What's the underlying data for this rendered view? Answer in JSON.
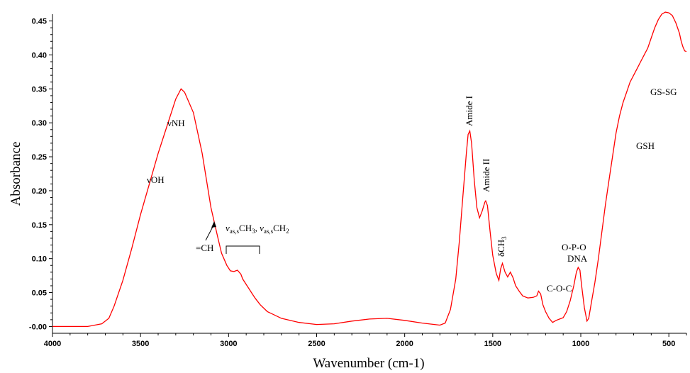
{
  "chart_data": {
    "type": "line",
    "title": "",
    "xlabel": "Wavenumber (cm-1)",
    "ylabel": "Absorbance",
    "xlim": [
      4000,
      400
    ],
    "ylim": [
      -0.01,
      0.46
    ],
    "x_reversed": true,
    "grid": false,
    "legend": "none",
    "x_ticks": [
      "4000",
      "3500",
      "3000",
      "2500",
      "2000",
      "1500",
      "1000",
      "500"
    ],
    "y_ticks": [
      "-0.00",
      "0.05",
      "0.10",
      "0.15",
      "0.20",
      "0.25",
      "0.30",
      "0.35",
      "0.40",
      "0.45"
    ],
    "series": [
      {
        "color": "#ff0000",
        "points": [
          [
            4000,
            0.0
          ],
          [
            3800,
            0.0
          ],
          [
            3720,
            0.004
          ],
          [
            3680,
            0.012
          ],
          [
            3650,
            0.03
          ],
          [
            3600,
            0.068
          ],
          [
            3550,
            0.115
          ],
          [
            3500,
            0.165
          ],
          [
            3450,
            0.21
          ],
          [
            3400,
            0.255
          ],
          [
            3350,
            0.295
          ],
          [
            3300,
            0.335
          ],
          [
            3270,
            0.35
          ],
          [
            3250,
            0.345
          ],
          [
            3200,
            0.315
          ],
          [
            3150,
            0.255
          ],
          [
            3100,
            0.175
          ],
          [
            3060,
            0.13
          ],
          [
            3040,
            0.108
          ],
          [
            3010,
            0.09
          ],
          [
            2990,
            0.082
          ],
          [
            2970,
            0.081
          ],
          [
            2950,
            0.083
          ],
          [
            2930,
            0.077
          ],
          [
            2920,
            0.07
          ],
          [
            2900,
            0.062
          ],
          [
            2870,
            0.05
          ],
          [
            2850,
            0.042
          ],
          [
            2820,
            0.032
          ],
          [
            2780,
            0.022
          ],
          [
            2700,
            0.012
          ],
          [
            2600,
            0.006
          ],
          [
            2500,
            0.003
          ],
          [
            2400,
            0.004
          ],
          [
            2300,
            0.008
          ],
          [
            2200,
            0.011
          ],
          [
            2100,
            0.012
          ],
          [
            2000,
            0.009
          ],
          [
            1900,
            0.005
          ],
          [
            1800,
            0.002
          ],
          [
            1770,
            0.005
          ],
          [
            1740,
            0.025
          ],
          [
            1710,
            0.07
          ],
          [
            1690,
            0.125
          ],
          [
            1670,
            0.19
          ],
          [
            1650,
            0.255
          ],
          [
            1640,
            0.283
          ],
          [
            1630,
            0.288
          ],
          [
            1620,
            0.27
          ],
          [
            1605,
            0.215
          ],
          [
            1590,
            0.175
          ],
          [
            1575,
            0.16
          ],
          [
            1560,
            0.17
          ],
          [
            1545,
            0.183
          ],
          [
            1540,
            0.185
          ],
          [
            1530,
            0.178
          ],
          [
            1515,
            0.14
          ],
          [
            1500,
            0.105
          ],
          [
            1480,
            0.078
          ],
          [
            1465,
            0.068
          ],
          [
            1455,
            0.085
          ],
          [
            1445,
            0.093
          ],
          [
            1430,
            0.08
          ],
          [
            1415,
            0.073
          ],
          [
            1400,
            0.08
          ],
          [
            1385,
            0.072
          ],
          [
            1370,
            0.06
          ],
          [
            1350,
            0.052
          ],
          [
            1330,
            0.045
          ],
          [
            1300,
            0.042
          ],
          [
            1270,
            0.043
          ],
          [
            1250,
            0.045
          ],
          [
            1240,
            0.052
          ],
          [
            1228,
            0.048
          ],
          [
            1215,
            0.032
          ],
          [
            1200,
            0.022
          ],
          [
            1180,
            0.012
          ],
          [
            1160,
            0.006
          ],
          [
            1140,
            0.009
          ],
          [
            1120,
            0.011
          ],
          [
            1100,
            0.013
          ],
          [
            1080,
            0.022
          ],
          [
            1060,
            0.038
          ],
          [
            1040,
            0.06
          ],
          [
            1025,
            0.08
          ],
          [
            1015,
            0.087
          ],
          [
            1005,
            0.083
          ],
          [
            995,
            0.06
          ],
          [
            980,
            0.028
          ],
          [
            965,
            0.008
          ],
          [
            955,
            0.012
          ],
          [
            940,
            0.035
          ],
          [
            920,
            0.065
          ],
          [
            900,
            0.1
          ],
          [
            880,
            0.14
          ],
          [
            860,
            0.18
          ],
          [
            840,
            0.215
          ],
          [
            820,
            0.25
          ],
          [
            800,
            0.285
          ],
          [
            780,
            0.31
          ],
          [
            760,
            0.33
          ],
          [
            740,
            0.345
          ],
          [
            720,
            0.36
          ],
          [
            700,
            0.37
          ],
          [
            680,
            0.38
          ],
          [
            660,
            0.39
          ],
          [
            640,
            0.4
          ],
          [
            620,
            0.41
          ],
          [
            600,
            0.425
          ],
          [
            580,
            0.44
          ],
          [
            560,
            0.452
          ],
          [
            540,
            0.46
          ],
          [
            520,
            0.463
          ],
          [
            500,
            0.462
          ],
          [
            480,
            0.458
          ],
          [
            460,
            0.447
          ],
          [
            440,
            0.432
          ],
          [
            430,
            0.42
          ],
          [
            420,
            0.412
          ],
          [
            410,
            0.406
          ],
          [
            400,
            0.405
          ]
        ]
      }
    ],
    "annotations": {
      "voh": "νOH",
      "vnh": "νNH",
      "ch": "=CH",
      "vas_pre": "ν",
      "vas_sub": "as,s",
      "vas_mid": "CH",
      "vas_3": "3",
      "vas_comma": ", ",
      "vas_pre2": "ν",
      "vas_sub2": "as,s",
      "vas_mid2": "CH",
      "vas_2": "2",
      "amide1": "Amide I",
      "amide2": "Amide II",
      "dch3": "δCH",
      "dch3_sub": "3",
      "coc": "C-O-C",
      "opo": "O-P-O",
      "dna": "DNA",
      "gssg": "GS-SG",
      "gsh": "GSH"
    }
  }
}
